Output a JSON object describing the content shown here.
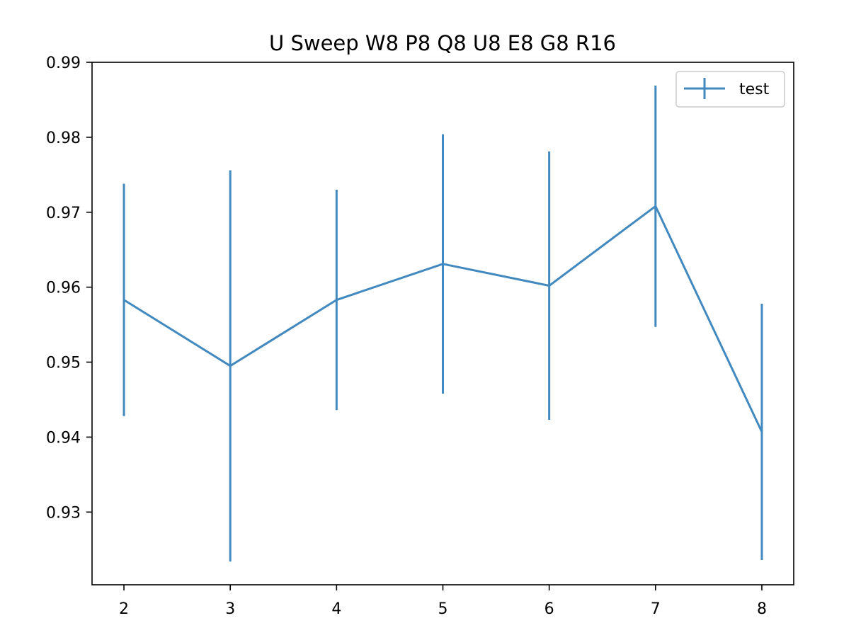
{
  "chart_data": {
    "type": "line",
    "title": "U Sweep W8 P8 Q8 U8 E8 G8 R16",
    "xlabel": "",
    "ylabel": "",
    "x": [
      2,
      3,
      4,
      5,
      6,
      7,
      8
    ],
    "xticks": [
      "2",
      "3",
      "4",
      "5",
      "6",
      "7",
      "8"
    ],
    "yticks": [
      "0.93",
      "0.94",
      "0.95",
      "0.96",
      "0.97",
      "0.98",
      "0.99"
    ],
    "xlim": [
      1.7,
      8.3
    ],
    "ylim": [
      0.9203,
      0.99
    ],
    "grid": false,
    "legend_position": "top-right",
    "series": [
      {
        "name": "test",
        "color": "#4189be",
        "values": [
          0.9583,
          0.9495,
          0.9583,
          0.9631,
          0.9602,
          0.9708,
          0.9407
        ],
        "errors": [
          0.0155,
          0.0261,
          0.0147,
          0.0173,
          0.0179,
          0.0161,
          0.0171
        ]
      }
    ]
  }
}
